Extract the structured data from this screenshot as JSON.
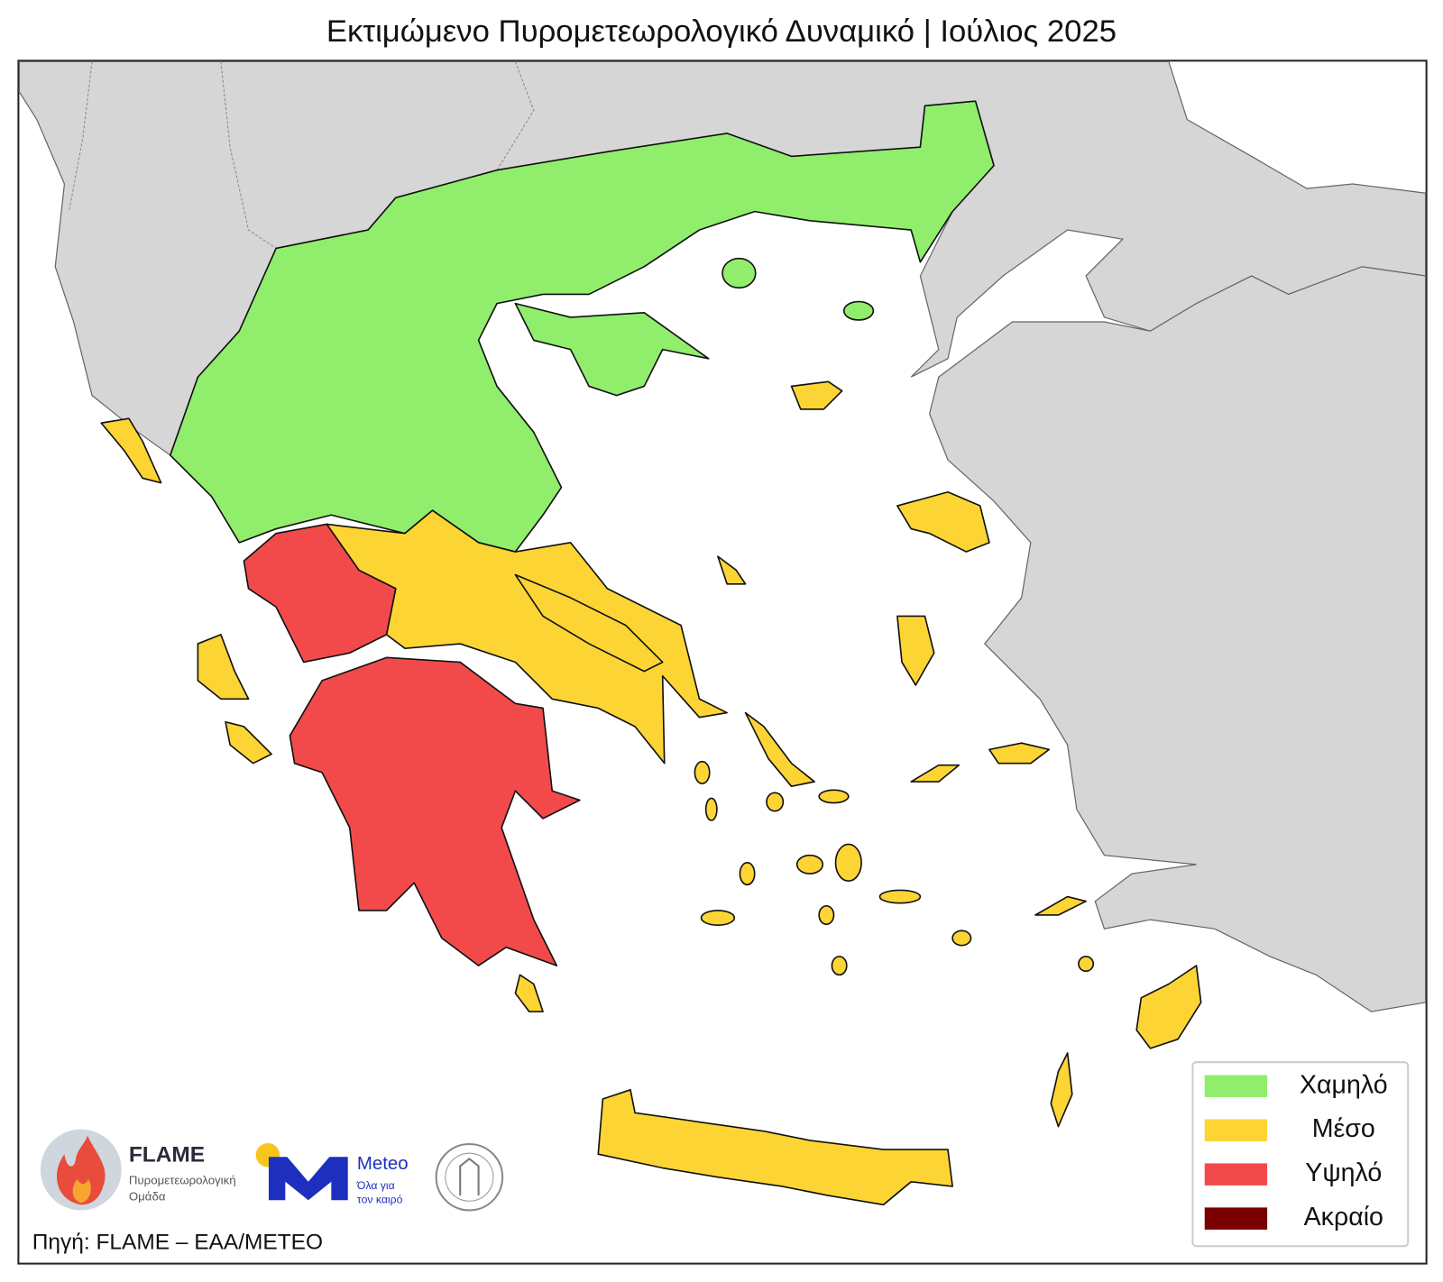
{
  "title": "Εκτιμώμενο Πυρομετεωρολογικό Δυναμικό | Ιούλιος 2025",
  "legend": [
    {
      "label": "Χαμηλό",
      "color": "#90ee6c"
    },
    {
      "label": "Μέσο",
      "color": "#fcd535"
    },
    {
      "label": "Υψηλό",
      "color": "#f24a4a"
    },
    {
      "label": "Ακραίο",
      "color": "#7a0000"
    }
  ],
  "logos": {
    "flame": {
      "name": "FLAME",
      "subtitle": [
        "Πυρομετεωρολογική",
        "Ομάδα"
      ]
    },
    "meteo": {
      "name": "Meteo",
      "slogan": [
        "Όλα για",
        "τον καιρό"
      ]
    }
  },
  "source": "Πηγή: FLAME – ΕΑΑ/METEO"
}
